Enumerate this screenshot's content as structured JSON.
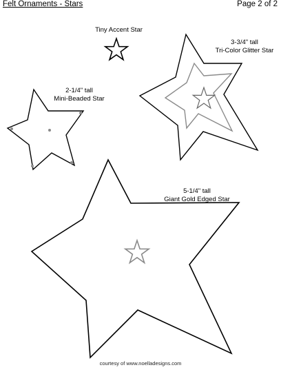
{
  "header": {
    "title": "Felt Ornaments - Stars",
    "page": "Page 2 of 2"
  },
  "stars": {
    "tiny": {
      "name": "Tiny Accent Star"
    },
    "beaded": {
      "size": "2-1/4\" tall",
      "name": "Mini-Beaded Star"
    },
    "glitter": {
      "size": "3-3/4\" tall",
      "name": "Tri-Color Glitter Star"
    },
    "giant": {
      "size": "5-1/4\" tall",
      "name": "Giant Gold Edged Star"
    }
  },
  "footer": {
    "credit": "courtesy of www.noelladesigns.com"
  },
  "colors": {
    "outline": "#000000",
    "inner_outline": "#8a8a8a",
    "bead_dot": "#8a8a8a"
  }
}
